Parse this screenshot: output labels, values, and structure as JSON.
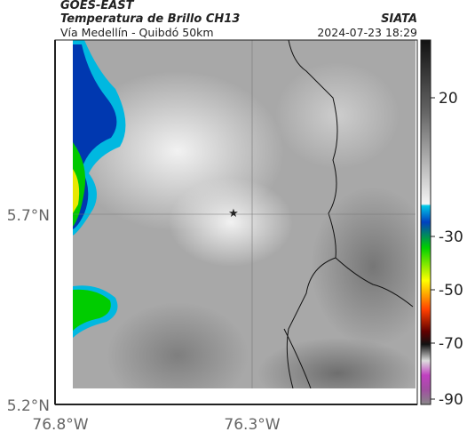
{
  "header": {
    "title": "GOES-EAST",
    "subtitle": "Temperatura de Brillo CH13",
    "source": "SIATA",
    "route": "Vía Medellín - Quibdó 50km",
    "timestamp": "2024-07-23 18:29"
  },
  "axes": {
    "lat_labels": [
      "5.7°N",
      "5.2°N"
    ],
    "lon_labels": [
      "76.8°W",
      "76.3°W"
    ]
  },
  "colorbar": {
    "labels": [
      20,
      -30,
      -50,
      -70,
      -90
    ]
  }
}
